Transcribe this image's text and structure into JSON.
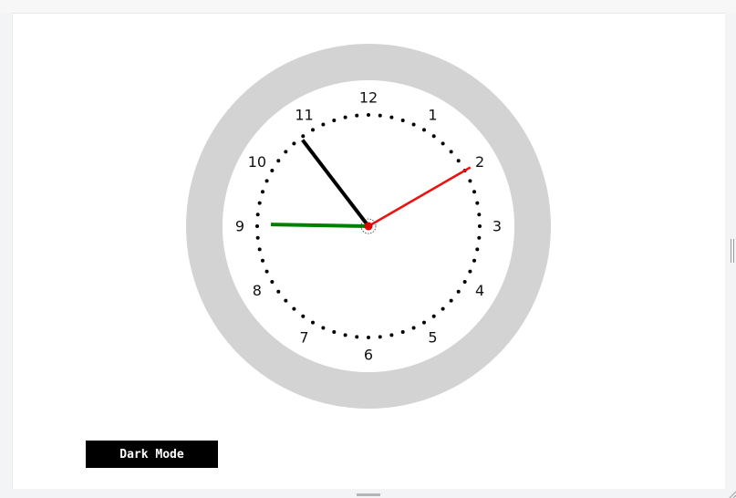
{
  "clock": {
    "numerals": [
      "12",
      "1",
      "2",
      "3",
      "4",
      "5",
      "6",
      "7",
      "8",
      "9",
      "10",
      "11"
    ],
    "time": {
      "hour": 10,
      "minute": 45,
      "second": 10
    },
    "colors": {
      "rim": "#d3d3d3",
      "face": "#ffffff",
      "dots": "#000000",
      "hour_hand": "#000000",
      "minute_hand": "#008000",
      "second_hand": "#ee1111",
      "center": "#dd0000"
    }
  },
  "controls": {
    "mode_button_label": "Dark Mode",
    "mode_button_bg": "#000000",
    "mode_button_fg": "#ffffff"
  }
}
